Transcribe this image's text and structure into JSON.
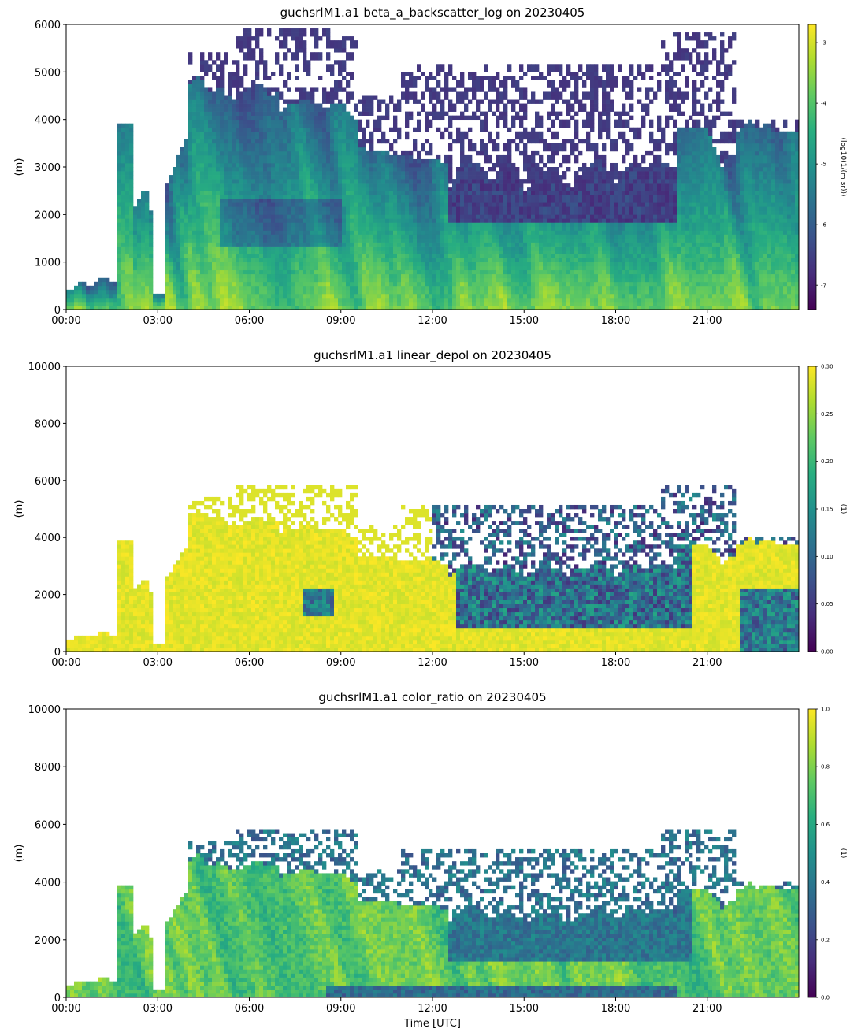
{
  "chart_data": [
    {
      "type": "heatmap",
      "title": "guchsrlM1.a1 beta_a_backscatter_log on 20230405",
      "xlabel": "",
      "ylabel": "(m)",
      "xticks": [
        "00:00",
        "03:00",
        "06:00",
        "09:00",
        "12:00",
        "15:00",
        "18:00",
        "21:00"
      ],
      "xlim_hours": [
        0,
        24
      ],
      "ylim": [
        0,
        6000
      ],
      "yticks": [
        "0",
        "1000",
        "2000",
        "3000",
        "4000",
        "5000",
        "6000"
      ],
      "colorbar": {
        "label": "(log10(1/(m sr)))",
        "range": [
          -7.4,
          -2.7
        ],
        "ticks": [
          "-3",
          "-4",
          "-5",
          "-6",
          "-7"
        ],
        "colormap": "viridis"
      }
    },
    {
      "type": "heatmap",
      "title": "guchsrlM1.a1 linear_depol on 20230405",
      "xlabel": "",
      "ylabel": "(m)",
      "xticks": [
        "00:00",
        "03:00",
        "06:00",
        "09:00",
        "12:00",
        "15:00",
        "18:00",
        "21:00"
      ],
      "xlim_hours": [
        0,
        24
      ],
      "ylim": [
        0,
        10000
      ],
      "yticks": [
        "0",
        "2000",
        "4000",
        "6000",
        "8000",
        "10000"
      ],
      "colorbar": {
        "label": "(1)",
        "range": [
          0.0,
          0.3
        ],
        "ticks": [
          "0.00",
          "0.05",
          "0.10",
          "0.15",
          "0.20",
          "0.25",
          "0.30"
        ],
        "colormap": "viridis"
      }
    },
    {
      "type": "heatmap",
      "title": "guchsrlM1.a1 color_ratio on 20230405",
      "xlabel": "Time [UTC]",
      "ylabel": "(m)",
      "xticks": [
        "00:00",
        "03:00",
        "06:00",
        "09:00",
        "12:00",
        "15:00",
        "18:00",
        "21:00"
      ],
      "xlim_hours": [
        0,
        24
      ],
      "ylim": [
        0,
        10000
      ],
      "yticks": [
        "0",
        "2000",
        "4000",
        "6000",
        "8000",
        "10000"
      ],
      "colorbar": {
        "label": "(1)",
        "range": [
          0.0,
          1.0
        ],
        "ticks": [
          "0.0",
          "0.2",
          "0.4",
          "0.6",
          "0.8",
          "1.0"
        ],
        "colormap": "viridis"
      }
    }
  ]
}
